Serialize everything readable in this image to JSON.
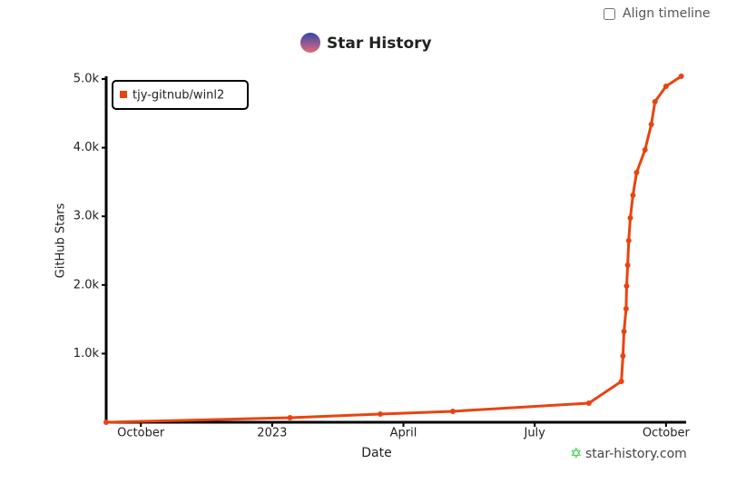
{
  "align_timeline": "Align timeline",
  "chart_data": {
    "type": "line",
    "title": "Star History",
    "x_label": "Date",
    "y_label": "GitHub Stars",
    "x": [
      2022.684,
      2023.034,
      2023.206,
      2023.344,
      2023.603,
      2023.665,
      2023.668,
      2023.67,
      2023.674,
      2023.675,
      2023.677,
      2023.679,
      2023.682,
      2023.687,
      2023.694,
      2023.71,
      2023.722,
      2023.729,
      2023.75,
      2023.779
    ],
    "series": [
      {
        "name": "tjy-gitnub/winl2",
        "color": "#e8440f",
        "values": [
          0,
          66,
          119,
          159,
          278,
          595,
          966,
          1323,
          1653,
          1984,
          2288,
          2646,
          2976,
          3307,
          3638,
          3968,
          4339,
          4669,
          4894,
          5040
        ]
      }
    ],
    "xlim": [
      2022.684,
      2023.79
    ],
    "xticks": [
      {
        "value": 2022.75,
        "label": "October"
      },
      2023,
      {
        "value": 2023.25,
        "label": "April"
      },
      {
        "value": 2023.5,
        "label": "July"
      },
      {
        "value": 2023.75,
        "label": "October"
      }
    ],
    "ylim": [
      0,
      5000
    ],
    "yticks": [
      {
        "value": 1000,
        "label": "1.0k"
      },
      {
        "value": 2000,
        "label": "2.0k"
      },
      {
        "value": 3000,
        "label": "3.0k"
      },
      {
        "value": 4000,
        "label": "4.0k"
      },
      {
        "value": 5000,
        "label": "5.0k"
      }
    ],
    "legend": "top-left"
  },
  "watermark": "star-history.com"
}
